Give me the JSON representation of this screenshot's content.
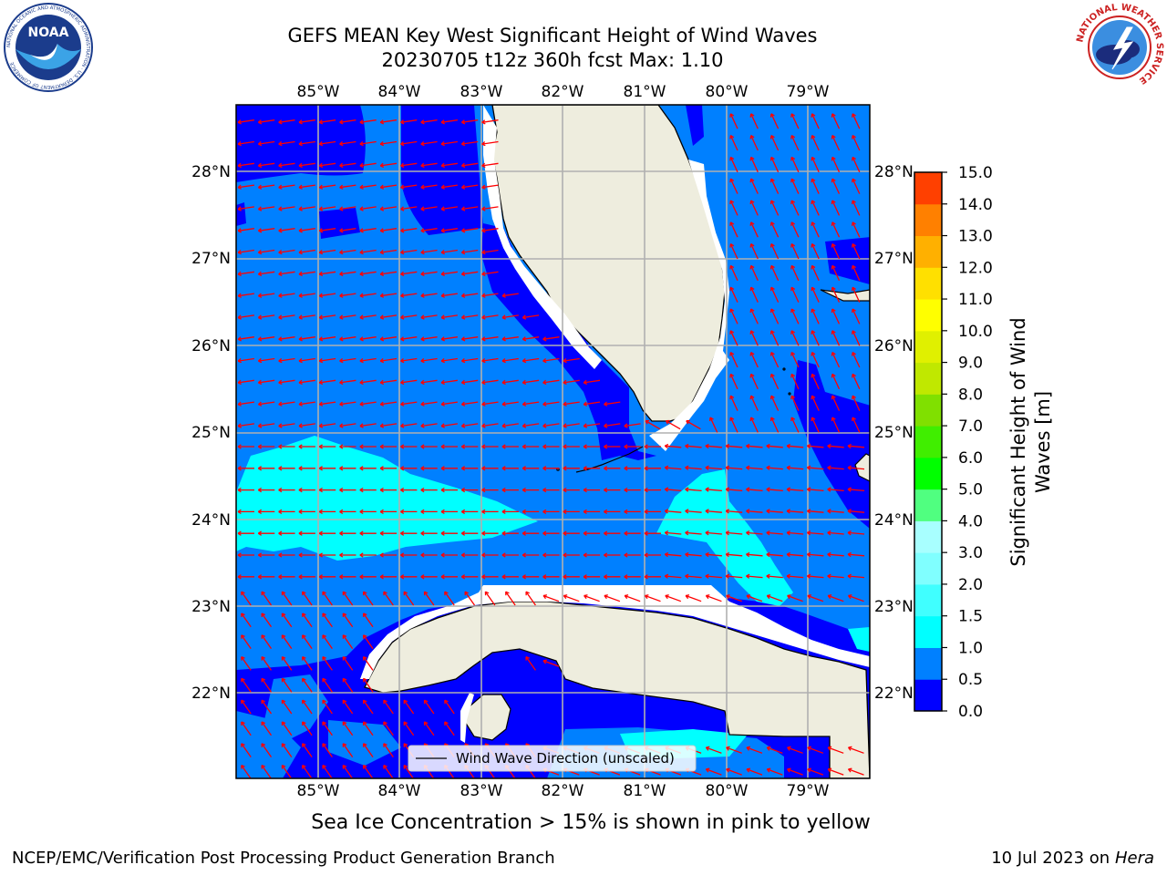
{
  "header": {
    "title_line1": "GEFS MEAN Key West Significant Height of Wind Waves",
    "title_line2": "20230705 t12z 360h fcst   Max: 1.10"
  },
  "logos": {
    "left_text": "NOAA",
    "left_ring_text": "NATIONAL OCEANIC AND ATMOSPHERIC ADMINISTRATION · U.S. DEPARTMENT OF COMMERCE",
    "right_ring_text": "NATIONAL WEATHER SERVICE"
  },
  "map": {
    "lon_labels": [
      "85°W",
      "84°W",
      "83°W",
      "82°W",
      "81°W",
      "80°W",
      "79°W"
    ],
    "lat_labels": [
      "28°N",
      "27°N",
      "26°N",
      "25°N",
      "24°N",
      "23°N",
      "22°N"
    ],
    "legend_text": "Wind Wave Direction (unscaled)",
    "colors": {
      "deep_blue": "#0000ff",
      "mid_blue": "#0080ff",
      "cyan": "#00ffff",
      "land": "#eeedde",
      "arrow": "#ff0000",
      "grid": "#b0b0b0"
    }
  },
  "colorbar": {
    "label_line1": "Significant Height of Wind",
    "label_line2": "Waves [m]",
    "ticks": [
      "0.0",
      "0.5",
      "1.0",
      "1.5",
      "2.0",
      "3.0",
      "4.0",
      "5.0",
      "6.0",
      "7.0",
      "8.0",
      "9.0",
      "10.0",
      "11.0",
      "12.0",
      "13.0",
      "14.0",
      "15.0"
    ],
    "colors": [
      "#0000ff",
      "#0080ff",
      "#00ffff",
      "#40ffff",
      "#80ffff",
      "#a8ffff",
      "#50ff80",
      "#00ff00",
      "#40ee00",
      "#80e000",
      "#c0e800",
      "#e0f000",
      "#ffff00",
      "#ffe000",
      "#ffb000",
      "#ff8000",
      "#ff4000",
      "#ff0000"
    ]
  },
  "footer": {
    "sea_ice_note": "Sea Ice Concentration > 15% is shown in pink to yellow",
    "credit_left": "NCEP/EMC/Verification Post Processing Product Generation Branch",
    "credit_date": "10 Jul 2023 on ",
    "credit_host": "Hera"
  }
}
